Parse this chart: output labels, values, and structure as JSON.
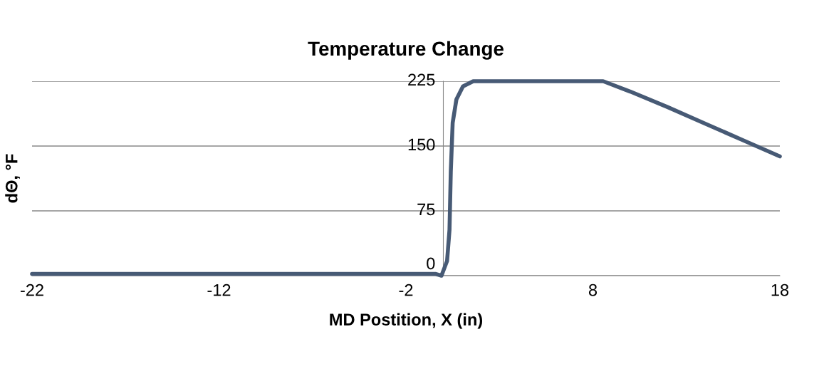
{
  "chart_data": {
    "type": "line",
    "title": "Temperature Change",
    "xlabel": "MD Postition, X (in)",
    "ylabel": "dΘ, °F",
    "series": [
      {
        "color": "#475a75",
        "x": [
          -22,
          -12,
          -2,
          -0.4,
          -0.1,
          0.2,
          0.33,
          0.4,
          0.5,
          0.7,
          1.05,
          1.6,
          4,
          8.55,
          10,
          12,
          14,
          16,
          18
        ],
        "values": [
          2,
          2,
          2,
          2,
          0,
          17,
          53,
          121,
          177,
          204,
          219,
          225,
          225,
          225,
          213,
          195,
          176,
          157,
          138
        ]
      }
    ],
    "xlim": [
      -22,
      18
    ],
    "xticks": [
      -22,
      -12,
      -2,
      8,
      18
    ],
    "ylim": [
      0,
      225
    ],
    "yticks": [
      0,
      75,
      150,
      225
    ],
    "grid": "y",
    "marker": "none",
    "line_style": "solid"
  }
}
